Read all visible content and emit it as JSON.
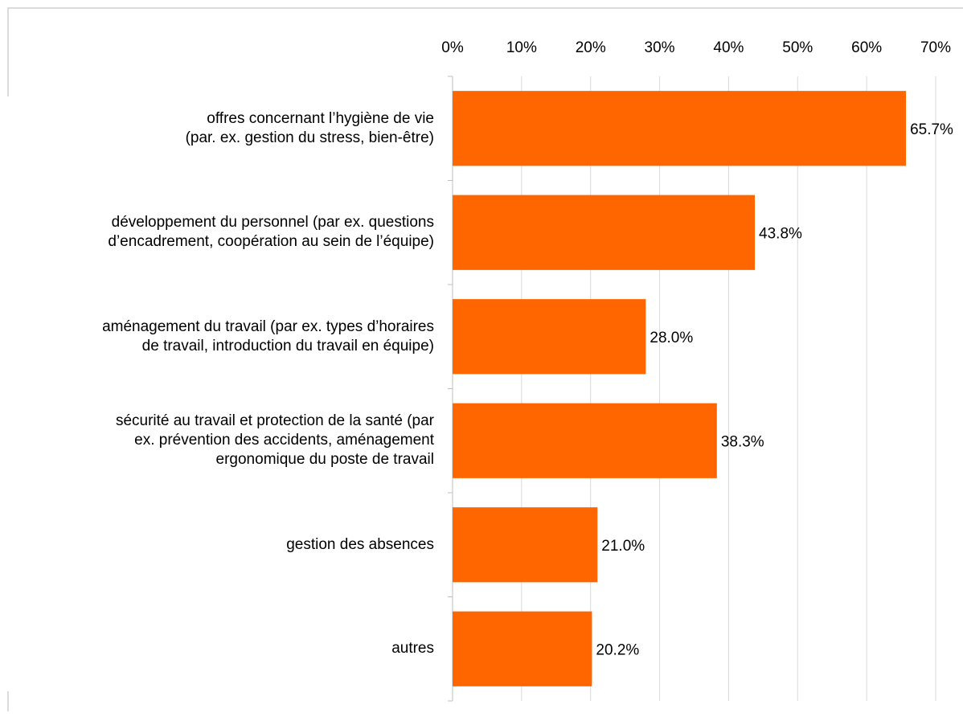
{
  "chart_data": {
    "type": "bar",
    "orientation": "horizontal",
    "categories": [
      "offres concernant l’hygiène de vie\n(par. ex. gestion du stress, bien-être)",
      "développement du personnel (par ex. questions\nd’encadrement, coopération au sein de l’équipe)",
      "aménagement du travail (par ex. types d’horaires\nde travail, introduction du travail en équipe)",
      "sécurité au travail et protection de la santé (par\nex. prévention des accidents, aménagement\nergonomique du poste de travail",
      "gestion des absences",
      "autres"
    ],
    "values": [
      65.7,
      43.8,
      28.0,
      38.3,
      21.0,
      20.2
    ],
    "value_labels": [
      "65.7%",
      "43.8%",
      "28.0%",
      "38.3%",
      "21.0%",
      "20.2%"
    ],
    "color": "#ff6600",
    "xlim": [
      0,
      70
    ],
    "xticks": [
      {
        "value": 0,
        "label": "0%"
      },
      {
        "value": 10,
        "label": "10%"
      },
      {
        "value": 20,
        "label": "20%"
      },
      {
        "value": 30,
        "label": "30%"
      },
      {
        "value": 40,
        "label": "40%"
      },
      {
        "value": 50,
        "label": "50%"
      },
      {
        "value": 60,
        "label": "60%"
      },
      {
        "value": 70,
        "label": "70%"
      }
    ],
    "grid": true
  }
}
